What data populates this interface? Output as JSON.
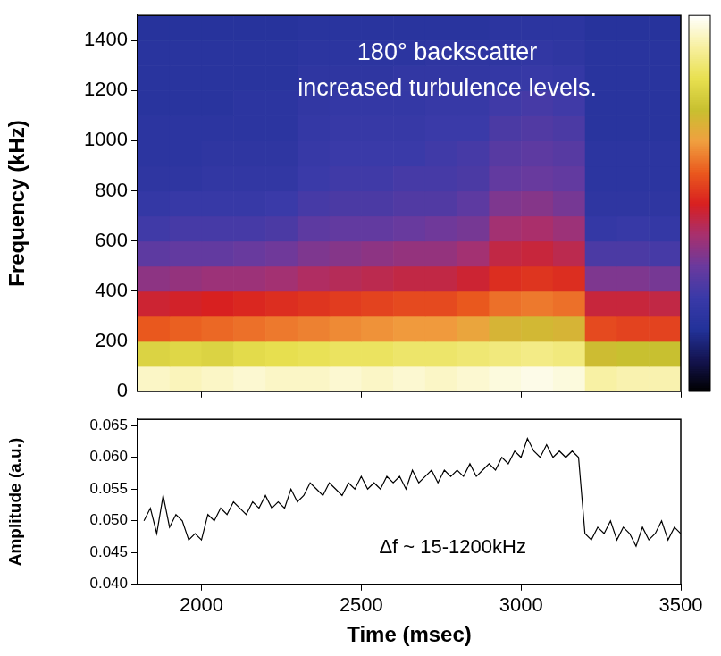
{
  "chart_data": [
    {
      "type": "heatmap",
      "ylabel": "Frequency (kHz)",
      "annotation": "180° backscatter\nincreased turbulence levels.",
      "x_bins": [
        1800,
        1900,
        2000,
        2100,
        2200,
        2300,
        2400,
        2500,
        2600,
        2700,
        2800,
        2900,
        3000,
        3100,
        3200,
        3300,
        3400,
        3500
      ],
      "y_bins": [
        0,
        100,
        200,
        300,
        400,
        500,
        600,
        700,
        800,
        900,
        1000,
        1100,
        1200,
        1300,
        1400,
        1500
      ],
      "cells": [
        [
          0.95,
          0.94,
          0.95,
          0.96,
          0.95,
          0.95,
          0.96,
          0.95,
          0.96,
          0.95,
          0.96,
          0.97,
          0.98,
          0.97,
          0.92,
          0.93,
          0.93
        ],
        [
          0.8,
          0.81,
          0.8,
          0.82,
          0.83,
          0.84,
          0.85,
          0.85,
          0.86,
          0.86,
          0.87,
          0.88,
          0.89,
          0.88,
          0.74,
          0.75,
          0.75
        ],
        [
          0.58,
          0.59,
          0.6,
          0.61,
          0.62,
          0.63,
          0.64,
          0.65,
          0.66,
          0.66,
          0.68,
          0.72,
          0.73,
          0.72,
          0.56,
          0.55,
          0.55
        ],
        [
          0.48,
          0.49,
          0.5,
          0.51,
          0.52,
          0.53,
          0.54,
          0.55,
          0.56,
          0.56,
          0.58,
          0.61,
          0.62,
          0.61,
          0.47,
          0.47,
          0.46
        ],
        [
          0.38,
          0.39,
          0.4,
          0.4,
          0.41,
          0.43,
          0.44,
          0.45,
          0.46,
          0.46,
          0.48,
          0.52,
          0.53,
          0.52,
          0.36,
          0.36,
          0.35
        ],
        [
          0.31,
          0.32,
          0.32,
          0.33,
          0.34,
          0.36,
          0.37,
          0.38,
          0.39,
          0.39,
          0.41,
          0.46,
          0.47,
          0.45,
          0.28,
          0.28,
          0.27
        ],
        [
          0.26,
          0.27,
          0.27,
          0.27,
          0.28,
          0.31,
          0.32,
          0.32,
          0.33,
          0.34,
          0.35,
          0.41,
          0.42,
          0.4,
          0.23,
          0.24,
          0.23
        ],
        [
          0.23,
          0.24,
          0.24,
          0.24,
          0.25,
          0.27,
          0.28,
          0.28,
          0.29,
          0.29,
          0.31,
          0.36,
          0.37,
          0.35,
          0.21,
          0.21,
          0.21
        ],
        [
          0.21,
          0.21,
          0.22,
          0.22,
          0.22,
          0.25,
          0.26,
          0.26,
          0.27,
          0.27,
          0.28,
          0.32,
          0.33,
          0.32,
          0.2,
          0.2,
          0.2
        ],
        [
          0.2,
          0.2,
          0.21,
          0.21,
          0.21,
          0.24,
          0.25,
          0.25,
          0.25,
          0.26,
          0.27,
          0.3,
          0.31,
          0.3,
          0.2,
          0.2,
          0.2
        ],
        [
          0.2,
          0.2,
          0.2,
          0.2,
          0.2,
          0.23,
          0.24,
          0.24,
          0.24,
          0.25,
          0.25,
          0.28,
          0.29,
          0.28,
          0.19,
          0.19,
          0.19
        ],
        [
          0.19,
          0.19,
          0.19,
          0.2,
          0.2,
          0.22,
          0.23,
          0.23,
          0.23,
          0.24,
          0.24,
          0.26,
          0.27,
          0.26,
          0.19,
          0.19,
          0.19
        ],
        [
          0.19,
          0.19,
          0.19,
          0.19,
          0.19,
          0.21,
          0.21,
          0.21,
          0.22,
          0.22,
          0.22,
          0.23,
          0.24,
          0.23,
          0.19,
          0.19,
          0.19
        ],
        [
          0.19,
          0.19,
          0.19,
          0.19,
          0.19,
          0.2,
          0.2,
          0.2,
          0.2,
          0.21,
          0.21,
          0.21,
          0.22,
          0.21,
          0.19,
          0.19,
          0.19
        ],
        [
          0.18,
          0.18,
          0.18,
          0.18,
          0.18,
          0.19,
          0.19,
          0.19,
          0.19,
          0.19,
          0.19,
          0.2,
          0.2,
          0.2,
          0.18,
          0.18,
          0.18
        ]
      ],
      "colorbar": {
        "range": [
          0,
          1
        ],
        "colors": [
          "#000000",
          "#141450",
          "#23329a",
          "#3a3aa8",
          "#6a3a9e",
          "#a8306e",
          "#d82020",
          "#ea5a1e",
          "#f0a040",
          "#c8c030",
          "#e8e050",
          "#f8f0a0",
          "#ffffff"
        ]
      },
      "xlim": [
        1800,
        3500
      ],
      "xticks": [
        2000,
        2500,
        3000,
        3500
      ],
      "ylim": [
        0,
        1500
      ],
      "yticks": [
        0,
        200,
        400,
        600,
        800,
        1000,
        1200,
        1400
      ],
      "tick_labels": "y",
      "grid": false
    },
    {
      "type": "line",
      "xlabel": "Time (msec)",
      "ylabel": "Amplitude (a.u.)",
      "annotation": "Δf ~ 15-1200kHz",
      "color": "#000000",
      "x": [
        1820,
        1840,
        1860,
        1880,
        1900,
        1920,
        1940,
        1960,
        1980,
        2000,
        2020,
        2040,
        2060,
        2080,
        2100,
        2120,
        2140,
        2160,
        2180,
        2200,
        2220,
        2240,
        2260,
        2280,
        2300,
        2320,
        2340,
        2360,
        2380,
        2400,
        2420,
        2440,
        2460,
        2480,
        2500,
        2520,
        2540,
        2560,
        2580,
        2600,
        2620,
        2640,
        2660,
        2680,
        2700,
        2720,
        2740,
        2760,
        2780,
        2800,
        2820,
        2840,
        2860,
        2880,
        2900,
        2920,
        2940,
        2960,
        2980,
        3000,
        3020,
        3040,
        3060,
        3080,
        3100,
        3120,
        3140,
        3160,
        3180,
        3200,
        3220,
        3240,
        3260,
        3280,
        3300,
        3320,
        3340,
        3360,
        3380,
        3400,
        3420,
        3440,
        3460,
        3480,
        3500
      ],
      "values": [
        0.05,
        0.052,
        0.048,
        0.054,
        0.049,
        0.051,
        0.05,
        0.047,
        0.048,
        0.047,
        0.051,
        0.05,
        0.052,
        0.051,
        0.053,
        0.052,
        0.051,
        0.053,
        0.052,
        0.054,
        0.052,
        0.053,
        0.052,
        0.055,
        0.053,
        0.054,
        0.056,
        0.055,
        0.054,
        0.056,
        0.055,
        0.054,
        0.056,
        0.055,
        0.057,
        0.055,
        0.056,
        0.055,
        0.057,
        0.056,
        0.057,
        0.055,
        0.058,
        0.056,
        0.057,
        0.058,
        0.056,
        0.058,
        0.057,
        0.058,
        0.057,
        0.059,
        0.057,
        0.058,
        0.059,
        0.058,
        0.06,
        0.059,
        0.061,
        0.06,
        0.063,
        0.061,
        0.06,
        0.062,
        0.06,
        0.061,
        0.06,
        0.061,
        0.06,
        0.048,
        0.047,
        0.049,
        0.048,
        0.05,
        0.047,
        0.049,
        0.048,
        0.046,
        0.049,
        0.047,
        0.048,
        0.05,
        0.047,
        0.049,
        0.048
      ],
      "xlim": [
        1800,
        3500
      ],
      "xticks": [
        2000,
        2500,
        3000,
        3500
      ],
      "ylim": [
        0.04,
        0.066
      ],
      "yticks": [
        {
          "value": 0.04,
          "label": "0.040"
        },
        0.045,
        {
          "value": 0.05,
          "label": "0.050"
        },
        0.055,
        {
          "value": 0.06,
          "label": "0.060"
        },
        0.065
      ],
      "grid": false
    }
  ]
}
